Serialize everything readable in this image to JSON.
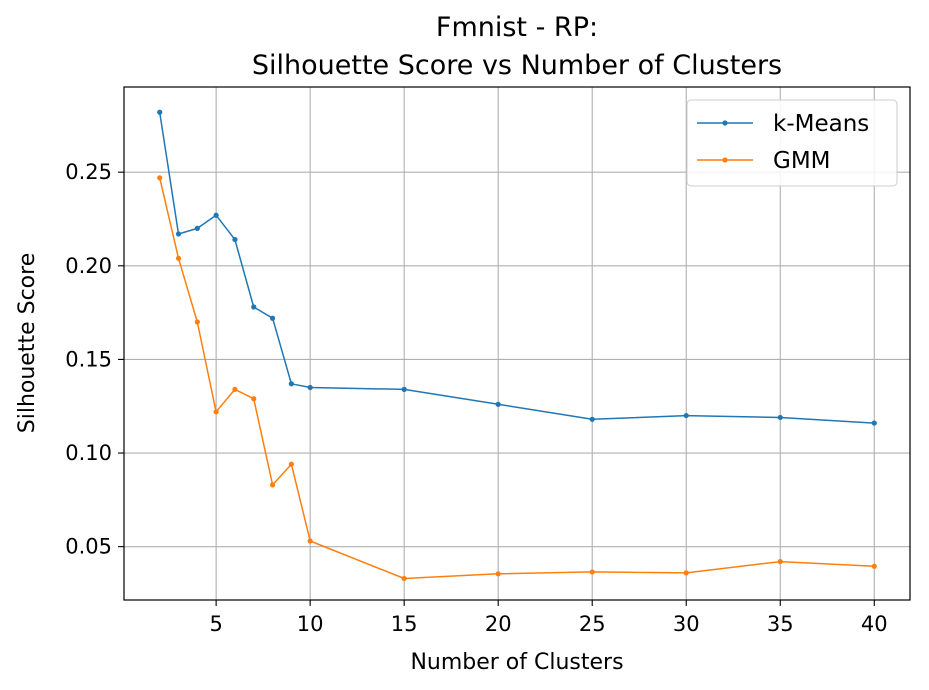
{
  "chart_data": {
    "type": "line",
    "title_line1": "Fmnist - RP:",
    "title_line2": "Silhouette Score vs Number of Clusters",
    "xlabel": "Number of Clusters",
    "ylabel": "Silhouette Score",
    "xlim": [
      0.1,
      41.9
    ],
    "ylim": [
      0.0215,
      0.2955
    ],
    "xticks": [
      5,
      10,
      15,
      20,
      25,
      30,
      35,
      40
    ],
    "yticks": [
      0.05,
      0.1,
      0.15,
      0.2,
      0.25
    ],
    "ytick_labels": [
      "0.05",
      "0.10",
      "0.15",
      "0.20",
      "0.25"
    ],
    "grid": true,
    "legend_position": "top-right",
    "x": [
      2,
      3,
      4,
      5,
      6,
      7,
      8,
      9,
      10,
      15,
      20,
      25,
      30,
      35,
      40
    ],
    "series": [
      {
        "name": "k-Means",
        "color": "#1f77b4",
        "values": [
          0.282,
          0.217,
          0.22,
          0.227,
          0.214,
          0.178,
          0.172,
          0.137,
          0.135,
          0.134,
          0.126,
          0.118,
          0.12,
          0.119,
          0.116
        ]
      },
      {
        "name": "GMM",
        "color": "#ff7f0e",
        "values": [
          0.247,
          0.204,
          0.17,
          0.122,
          0.134,
          0.129,
          0.083,
          0.094,
          0.053,
          0.033,
          0.0355,
          0.0365,
          0.036,
          0.042,
          0.0395
        ]
      }
    ]
  }
}
